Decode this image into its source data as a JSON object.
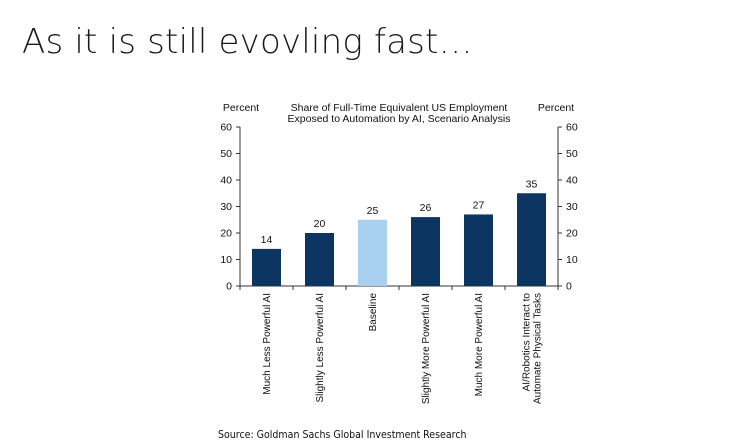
{
  "slide": {
    "title": "As it is still evovling fast…",
    "source": "Source: Goldman Sachs Global Investment Research"
  },
  "chart_data": {
    "type": "bar",
    "title": "Share of Full-Time Equivalent US Employment\nExposed to Automation by AI, Scenario Analysis",
    "ylabel_left": "Percent",
    "ylabel_right": "Percent",
    "ylim": [
      0,
      60
    ],
    "yticks": [
      0,
      10,
      20,
      30,
      40,
      50,
      60
    ],
    "categories": [
      "Much Less Powerful AI",
      "Slightly Less Powerful AI",
      "Baseline",
      "Slightly More Powerful AI",
      "Much More Powerful AI",
      "AI/Robotics Interact to\nAutomate Physical Tasks"
    ],
    "values": [
      14,
      20,
      25,
      26,
      27,
      35
    ],
    "bar_colors": [
      "#0d3561",
      "#0d3561",
      "#a9d1ef",
      "#0d3561",
      "#0d3561",
      "#0d3561"
    ],
    "grid": false,
    "legend": "none"
  }
}
